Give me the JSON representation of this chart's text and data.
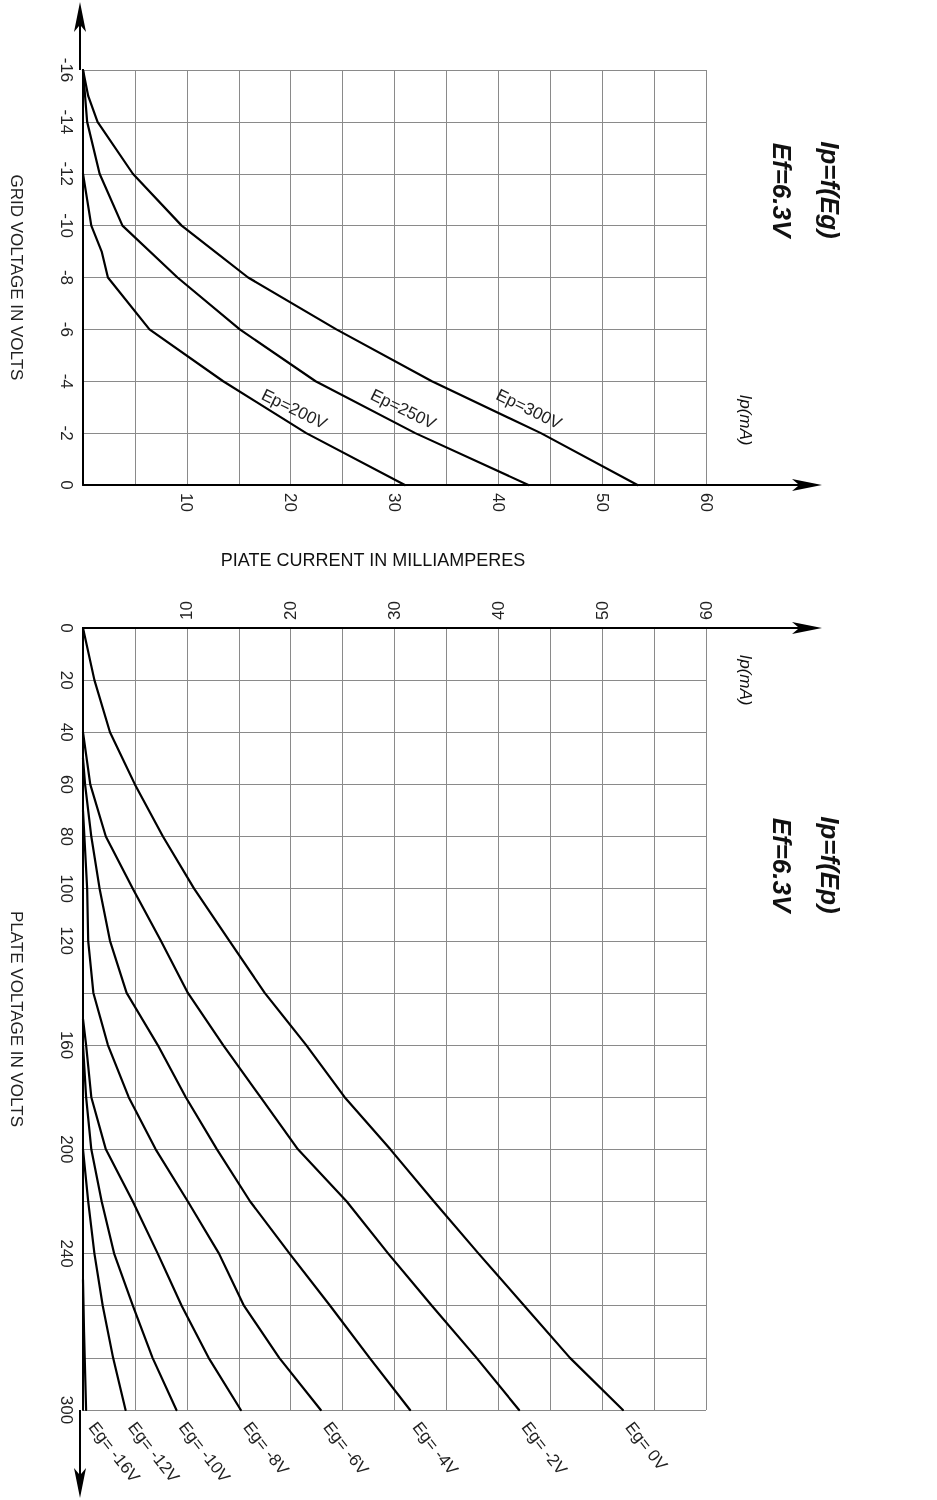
{
  "chart_data": [
    {
      "type": "line",
      "ylabel": "GRID VOLTAGE IN VOLTS",
      "annotations": [
        "Ip=f(Eg)",
        "Ef=6.3V",
        "Ip(mA)",
        "PIATE CURRENT IN MILLIAMPERES"
      ],
      "xlim": [
        0,
        60
      ],
      "xticks": [
        {
          "value": 0,
          "label": null
        },
        {
          "value": 5,
          "label": null
        },
        10,
        {
          "value": 15,
          "label": null
        },
        20,
        {
          "value": 25,
          "label": null
        },
        30,
        {
          "value": 35,
          "label": null
        },
        40,
        {
          "value": 45,
          "label": null
        },
        50,
        {
          "value": 55,
          "label": null
        },
        60
      ],
      "ylim": [
        0,
        -16
      ],
      "yticks": [
        0,
        -2,
        -4,
        -6,
        -8,
        -10,
        -12,
        -14,
        -16
      ],
      "grid": true,
      "marker": "none",
      "line_style": "solid",
      "series": [
        {
          "name": "Ep=200V",
          "color": "#000000",
          "x": [
            0,
            0.4,
            0.8,
            1.8,
            2.4,
            6.4,
            13.5,
            21.5,
            31
          ],
          "values": [
            -12,
            -11,
            -10,
            -9,
            -8,
            -6,
            -4,
            -2,
            0
          ]
        },
        {
          "name": "Ep=250V",
          "color": "#000000",
          "x": [
            0,
            0.4,
            1.6,
            3.8,
            9.1,
            15.1,
            22.4,
            32,
            42.9
          ],
          "values": [
            -16,
            -14,
            -12,
            -10,
            -8,
            -6,
            -4,
            -2,
            0
          ]
        },
        {
          "name": "Ep=300V",
          "color": "#000000",
          "x": [
            0,
            0.5,
            1.4,
            4.8,
            9.5,
            15.9,
            24.4,
            33.6,
            44.1,
            53.4
          ],
          "values": [
            -16,
            -15,
            -14,
            -12,
            -10,
            -8,
            -6,
            -4,
            -2,
            0
          ]
        }
      ]
    },
    {
      "type": "line",
      "ylabel": "PLATE VOLTAGE IN VOLTS",
      "annotations": [
        "Ip=f(Ep)",
        "Ef=6.3V",
        "Ip(mA)"
      ],
      "xlim": [
        0,
        60
      ],
      "xticks": [
        {
          "value": 0,
          "label": null
        },
        {
          "value": 5,
          "label": null
        },
        10,
        {
          "value": 15,
          "label": null
        },
        20,
        {
          "value": 25,
          "label": null
        },
        30,
        {
          "value": 35,
          "label": null
        },
        40,
        {
          "value": 45,
          "label": null
        },
        50,
        {
          "value": 55,
          "label": null
        },
        60
      ],
      "ylim": [
        300,
        0
      ],
      "yticks": [
        0,
        20,
        40,
        60,
        80,
        100,
        120,
        {
          "value": 140,
          "label": null
        },
        160,
        {
          "value": 180,
          "label": null
        },
        200,
        {
          "value": 220,
          "label": null
        },
        240,
        {
          "value": 260,
          "label": null
        },
        {
          "value": 280,
          "label": null
        },
        300
      ],
      "grid": true,
      "marker": "none",
      "line_style": "solid",
      "series": [
        {
          "name": "Eg= 0V",
          "color": "#000000",
          "x": [
            0,
            1.1,
            2.6,
            5,
            7.7,
            10.7,
            14.1,
            17.5,
            21.5,
            25.2,
            29.6,
            33.8,
            38.1,
            42.5,
            46.9,
            52
          ],
          "values": [
            0,
            20,
            40,
            60,
            80,
            100,
            120,
            140,
            160,
            180,
            200,
            220,
            240,
            260,
            280,
            300
          ]
        },
        {
          "name": "Eg= -2V",
          "color": "#000000",
          "x": [
            0,
            0.7,
            2.2,
            4.8,
            7.5,
            10.1,
            13.5,
            17.1,
            20.7,
            25.4,
            29.4,
            33.6,
            37.9,
            42
          ],
          "values": [
            40,
            60,
            80,
            100,
            120,
            140,
            160,
            180,
            200,
            220,
            240,
            260,
            280,
            300
          ]
        },
        {
          "name": "Eg= -4V",
          "color": "#000000",
          "x": [
            0,
            0.2,
            0.8,
            1.6,
            2.6,
            4.2,
            7.2,
            9.9,
            12.9,
            16.1,
            19.9,
            23.8,
            27.6,
            31.5
          ],
          "values": [
            50,
            60,
            80,
            100,
            120,
            140,
            160,
            180,
            200,
            220,
            240,
            260,
            280,
            300
          ]
        },
        {
          "name": "Eg= -6V",
          "color": "#000000",
          "x": [
            0,
            0.4,
            0.5,
            1,
            2.4,
            4.4,
            7,
            10.1,
            13.1,
            15.5,
            18.9,
            22.9
          ],
          "values": [
            70,
            100,
            120,
            140,
            160,
            180,
            200,
            220,
            240,
            260,
            280,
            300
          ]
        },
        {
          "name": "Eg= -8V",
          "color": "#000000",
          "x": [
            0,
            0.3,
            0.8,
            2.2,
            4.8,
            7.2,
            9.5,
            12.1,
            15.2
          ],
          "values": [
            150,
            160,
            180,
            200,
            220,
            240,
            260,
            280,
            300
          ]
        },
        {
          "name": "Eg= -10V",
          "color": "#000000",
          "x": [
            0,
            0.3,
            0.8,
            1.8,
            3,
            4.8,
            6.7,
            9
          ],
          "values": [
            160,
            180,
            200,
            220,
            240,
            260,
            280,
            300
          ]
        },
        {
          "name": "Eg= -12V",
          "color": "#000000",
          "x": [
            0,
            0.5,
            1.1,
            1.9,
            2.9,
            4.1
          ],
          "values": [
            200,
            220,
            240,
            260,
            280,
            300
          ]
        },
        {
          "name": "Eg= -16V",
          "color": "#000000",
          "x": [
            0,
            0.1,
            0.3
          ],
          "values": [
            250,
            270,
            300
          ]
        }
      ]
    }
  ]
}
